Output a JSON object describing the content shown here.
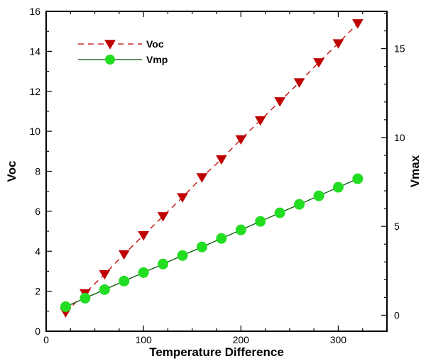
{
  "chart_data": {
    "type": "line",
    "xlabel": "Temperature Difference",
    "ylabel": "Voc",
    "y2label": "Vmax",
    "xlim": [
      0,
      350
    ],
    "ylim": [
      0,
      16
    ],
    "y2lim": [
      -0.9,
      17.1
    ],
    "x_ticks": [
      0,
      100,
      200,
      300
    ],
    "y_ticks": [
      0,
      2,
      4,
      6,
      8,
      10,
      12,
      14,
      16
    ],
    "y2_ticks": [
      0,
      5,
      10,
      15
    ],
    "grid": false,
    "legend_position": "top-left",
    "series": [
      {
        "name": "Voc",
        "axis": "left",
        "color": "#c00000",
        "line_style": "dashed",
        "marker": "triangle-down",
        "x": [
          20,
          40,
          60,
          80,
          100,
          120,
          140,
          160,
          180,
          200,
          220,
          240,
          260,
          280,
          300,
          320
        ],
        "y": [
          0.95,
          1.9,
          2.85,
          3.85,
          4.8,
          5.75,
          6.7,
          7.7,
          8.6,
          9.6,
          10.55,
          11.5,
          12.45,
          13.45,
          14.4,
          15.4
        ]
      },
      {
        "name": "Vmp",
        "axis": "right",
        "color": "#22dd22",
        "line_color": "#005500",
        "line_style": "solid",
        "marker": "circle",
        "x": [
          20,
          40,
          60,
          80,
          100,
          120,
          140,
          160,
          180,
          200,
          220,
          240,
          260,
          280,
          300,
          320
        ],
        "y": [
          0.48,
          0.96,
          1.44,
          1.92,
          2.4,
          2.88,
          3.36,
          3.84,
          4.32,
          4.8,
          5.28,
          5.76,
          6.24,
          6.72,
          7.2,
          7.68
        ]
      }
    ]
  }
}
